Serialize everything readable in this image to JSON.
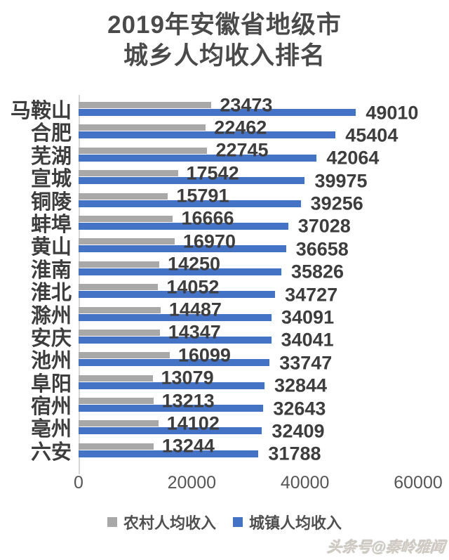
{
  "title": {
    "line1": "2019年安徽省地级市",
    "line2": "城乡人均收入排名"
  },
  "colors": {
    "rural": "#a8a8a8",
    "urban": "#4472c4",
    "axis_line": "#d6d6d6",
    "text_dark": "#3d3d3d"
  },
  "chart_data": {
    "type": "bar",
    "orientation": "horizontal",
    "title": "2019年安徽省地级市 城乡人均收入排名",
    "categories": [
      "马鞍山",
      "合肥",
      "芜湖",
      "宣城",
      "铜陵",
      "蚌埠",
      "黄山",
      "淮南",
      "淮北",
      "滁州",
      "安庆",
      "池州",
      "阜阳",
      "宿州",
      "亳州",
      "六安"
    ],
    "series": [
      {
        "name": "农村人均收入",
        "color": "#a8a8a8",
        "values": [
          23473,
          22462,
          22745,
          17542,
          15791,
          16666,
          16970,
          14250,
          14052,
          14487,
          14347,
          16099,
          13079,
          13213,
          14102,
          13244
        ]
      },
      {
        "name": "城镇人均收入",
        "color": "#4472c4",
        "values": [
          49010,
          45404,
          42064,
          39975,
          39256,
          37028,
          36658,
          35826,
          34727,
          34091,
          34041,
          33747,
          32844,
          32643,
          32409,
          31788
        ]
      }
    ],
    "x_axis": {
      "min": 0,
      "max": 60000,
      "ticks": [
        "0",
        "20000",
        "40000",
        "60000"
      ]
    },
    "grid": false,
    "legend_position": "bottom",
    "legend": [
      {
        "label": "农村人均收入",
        "color": "#a8a8a8"
      },
      {
        "label": "城镇人均收入",
        "color": "#4472c4"
      }
    ]
  },
  "watermark": "头条号@秦岭雅闻"
}
